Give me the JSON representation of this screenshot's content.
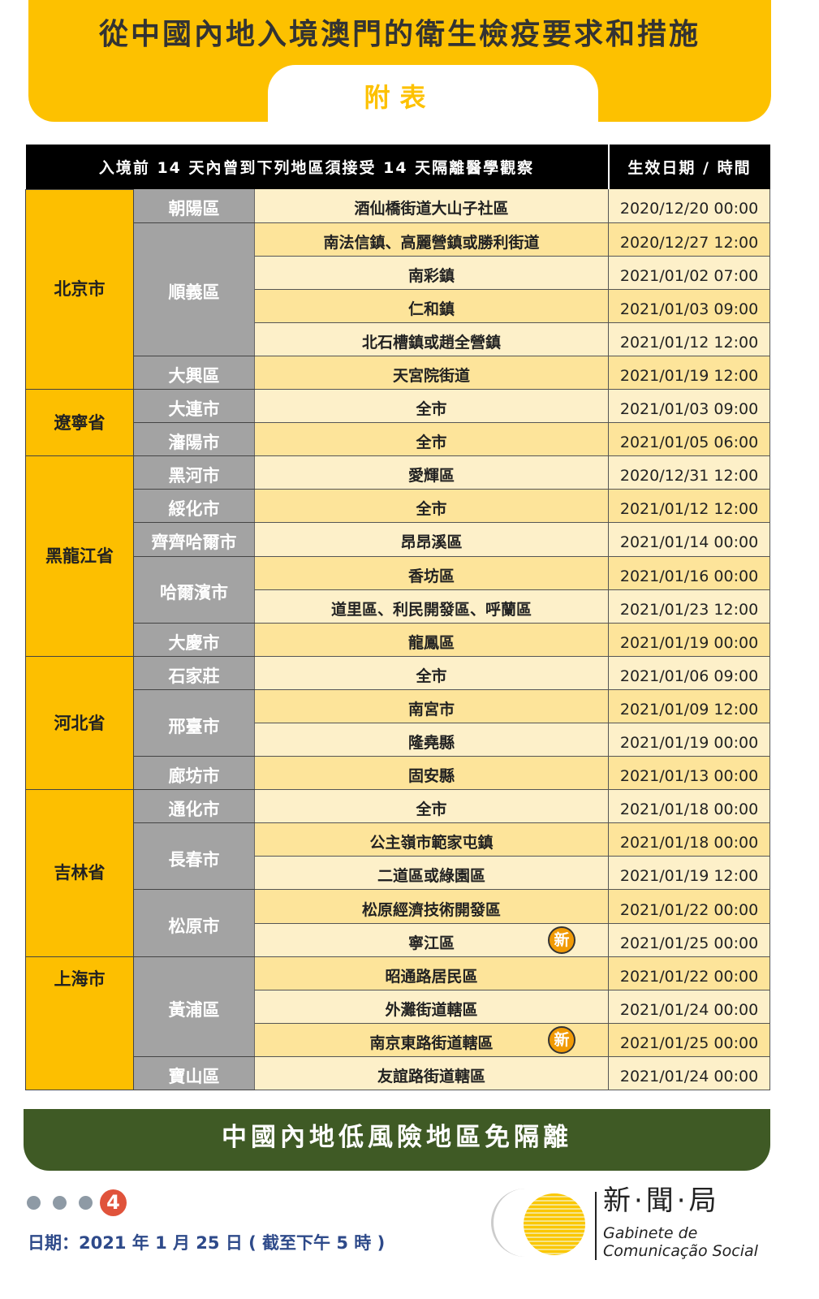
{
  "header": {
    "title": "從中國內地入境澳門的衛生檢疫要求和措施",
    "subtitle": "附表"
  },
  "table": {
    "headers": [
      "入境前 14 天內曾到下列地區須接受 14 天隔離醫學觀察",
      "生效日期 / 時間"
    ],
    "provinces": [
      {
        "name": "北京市",
        "districts": [
          {
            "name": "朝陽區",
            "rows": [
              [
                "酒仙橋街道大山子社區",
                "2020/12/20 00:00"
              ]
            ]
          },
          {
            "name": "順義區",
            "rows": [
              [
                "南法信鎮、高麗營鎮或勝利街道",
                "2020/12/27 12:00"
              ],
              [
                "南彩鎮",
                "2021/01/02 07:00"
              ],
              [
                "仁和鎮",
                "2021/01/03 09:00"
              ],
              [
                "北石槽鎮或趙全營鎮",
                "2021/01/12 12:00"
              ]
            ]
          },
          {
            "name": "大興區",
            "rows": [
              [
                "天宮院街道",
                "2021/01/19 12:00"
              ]
            ]
          }
        ]
      },
      {
        "name": "遼寧省",
        "districts": [
          {
            "name": "大連市",
            "rows": [
              [
                "全市",
                "2021/01/03 09:00"
              ]
            ]
          },
          {
            "name": "瀋陽市",
            "rows": [
              [
                "全市",
                "2021/01/05 06:00"
              ]
            ]
          }
        ]
      },
      {
        "name": "黑龍江省",
        "districts": [
          {
            "name": "黑河市",
            "rows": [
              [
                "愛輝區",
                "2020/12/31 12:00"
              ]
            ]
          },
          {
            "name": "綏化市",
            "rows": [
              [
                "全市",
                "2021/01/12 12:00"
              ]
            ]
          },
          {
            "name": "齊齊哈爾市",
            "rows": [
              [
                "昂昂溪區",
                "2021/01/14 00:00"
              ]
            ]
          },
          {
            "name": "哈爾濱市",
            "rows": [
              [
                "香坊區",
                "2021/01/16 00:00"
              ],
              [
                "道里區、利民開發區、呼蘭區",
                "2021/01/23 12:00"
              ]
            ]
          },
          {
            "name": "大慶市",
            "rows": [
              [
                "龍鳳區",
                "2021/01/19 00:00"
              ]
            ]
          }
        ]
      },
      {
        "name": "河北省",
        "districts": [
          {
            "name": "石家莊",
            "rows": [
              [
                "全市",
                "2021/01/06 09:00"
              ]
            ]
          },
          {
            "name": "邢臺市",
            "rows": [
              [
                "南宮市",
                "2021/01/09 12:00"
              ],
              [
                "隆堯縣",
                "2021/01/19 00:00"
              ]
            ]
          },
          {
            "name": "廊坊市",
            "rows": [
              [
                "固安縣",
                "2021/01/13 00:00"
              ]
            ]
          }
        ]
      },
      {
        "name": "吉林省",
        "districts": [
          {
            "name": "通化市",
            "rows": [
              [
                "全市",
                "2021/01/18 00:00"
              ]
            ]
          },
          {
            "name": "長春市",
            "rows": [
              [
                "公主嶺市範家屯鎮",
                "2021/01/18 00:00"
              ],
              [
                "二道區或綠園區",
                "2021/01/19 12:00"
              ]
            ]
          },
          {
            "name": "松原市",
            "rows": [
              [
                "松原經濟技術開發區",
                "2021/01/22 00:00"
              ],
              [
                "寧江區",
                "2021/01/25 00:00",
                "新"
              ]
            ]
          }
        ]
      },
      {
        "name": "上海市",
        "top": true,
        "districts": [
          {
            "name": "黃浦區",
            "rows": [
              [
                "昭通路居民區",
                "2021/01/22 00:00"
              ],
              [
                "外灘街道轄區",
                "2021/01/24 00:00"
              ],
              [
                "南京東路街道轄區",
                "2021/01/25 00:00",
                "新"
              ]
            ]
          },
          {
            "name": "寶山區",
            "rows": [
              [
                "友誼路街道轄區",
                "2021/01/24 00:00"
              ]
            ]
          }
        ]
      }
    ]
  },
  "footer_banner": "中國內地低風險地區免隔離",
  "page_indicator": {
    "current": "4"
  },
  "date_note": "日期：2021 年 1 月 25 日 ( 截至下午 5 時 )",
  "logo": {
    "mark": "GCS",
    "cn": "新·聞·局",
    "pt1": "Gabinete de",
    "pt2": "Comunicação Social"
  },
  "colors": {
    "yellow": "#fdc100",
    "green": "#3f5a25",
    "badge": "#f19a05",
    "page": "#e0533b"
  }
}
